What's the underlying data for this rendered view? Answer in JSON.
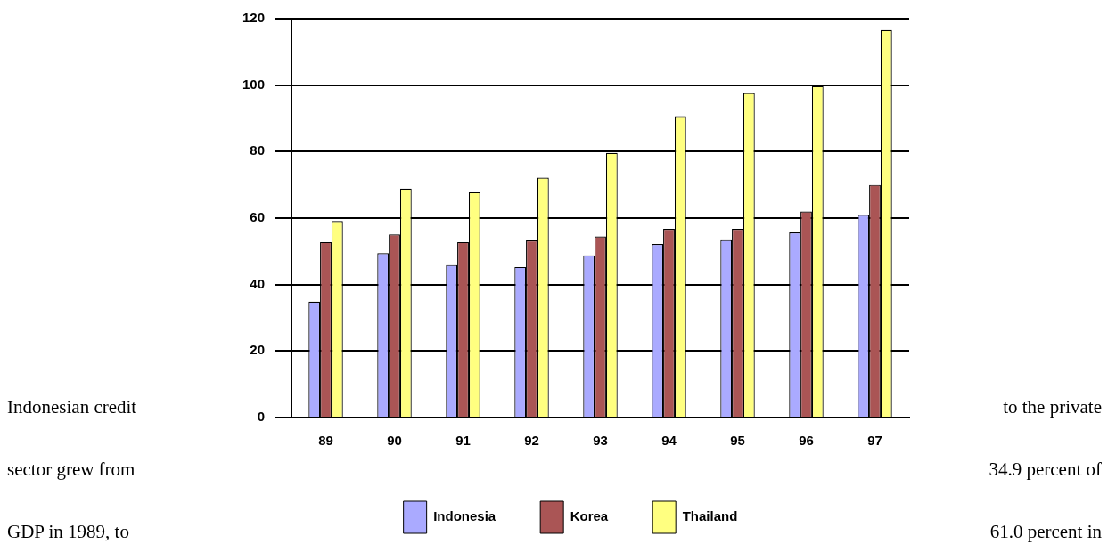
{
  "chart_data": {
    "type": "bar",
    "categories": [
      "89",
      "90",
      "91",
      "92",
      "93",
      "94",
      "95",
      "96",
      "97"
    ],
    "series": [
      {
        "name": "Indonesia",
        "color": "#aaaaff",
        "values": [
          34.9,
          49.5,
          45.9,
          45.3,
          48.8,
          52.2,
          53.4,
          55.7,
          61.0
        ]
      },
      {
        "name": "Korea",
        "color": "#aa5555",
        "values": [
          52.8,
          55.1,
          52.8,
          53.3,
          54.5,
          56.8,
          56.8,
          62.0,
          70.0
        ]
      },
      {
        "name": "Thailand",
        "color": "#ffff80",
        "values": [
          59.1,
          68.9,
          67.8,
          72.2,
          79.6,
          90.7,
          97.6,
          99.7,
          116.6
        ]
      }
    ],
    "ylim": [
      0,
      120
    ],
    "yticks": [
      0,
      20,
      40,
      60,
      80,
      100,
      120
    ],
    "grid": "y",
    "legend": "bottom",
    "annotations": [
      "Indonesian credit",
      "to the private",
      "sector grew from",
      "34.9 percent of",
      "GDP in 1989, to",
      "61.0 percent in"
    ]
  }
}
